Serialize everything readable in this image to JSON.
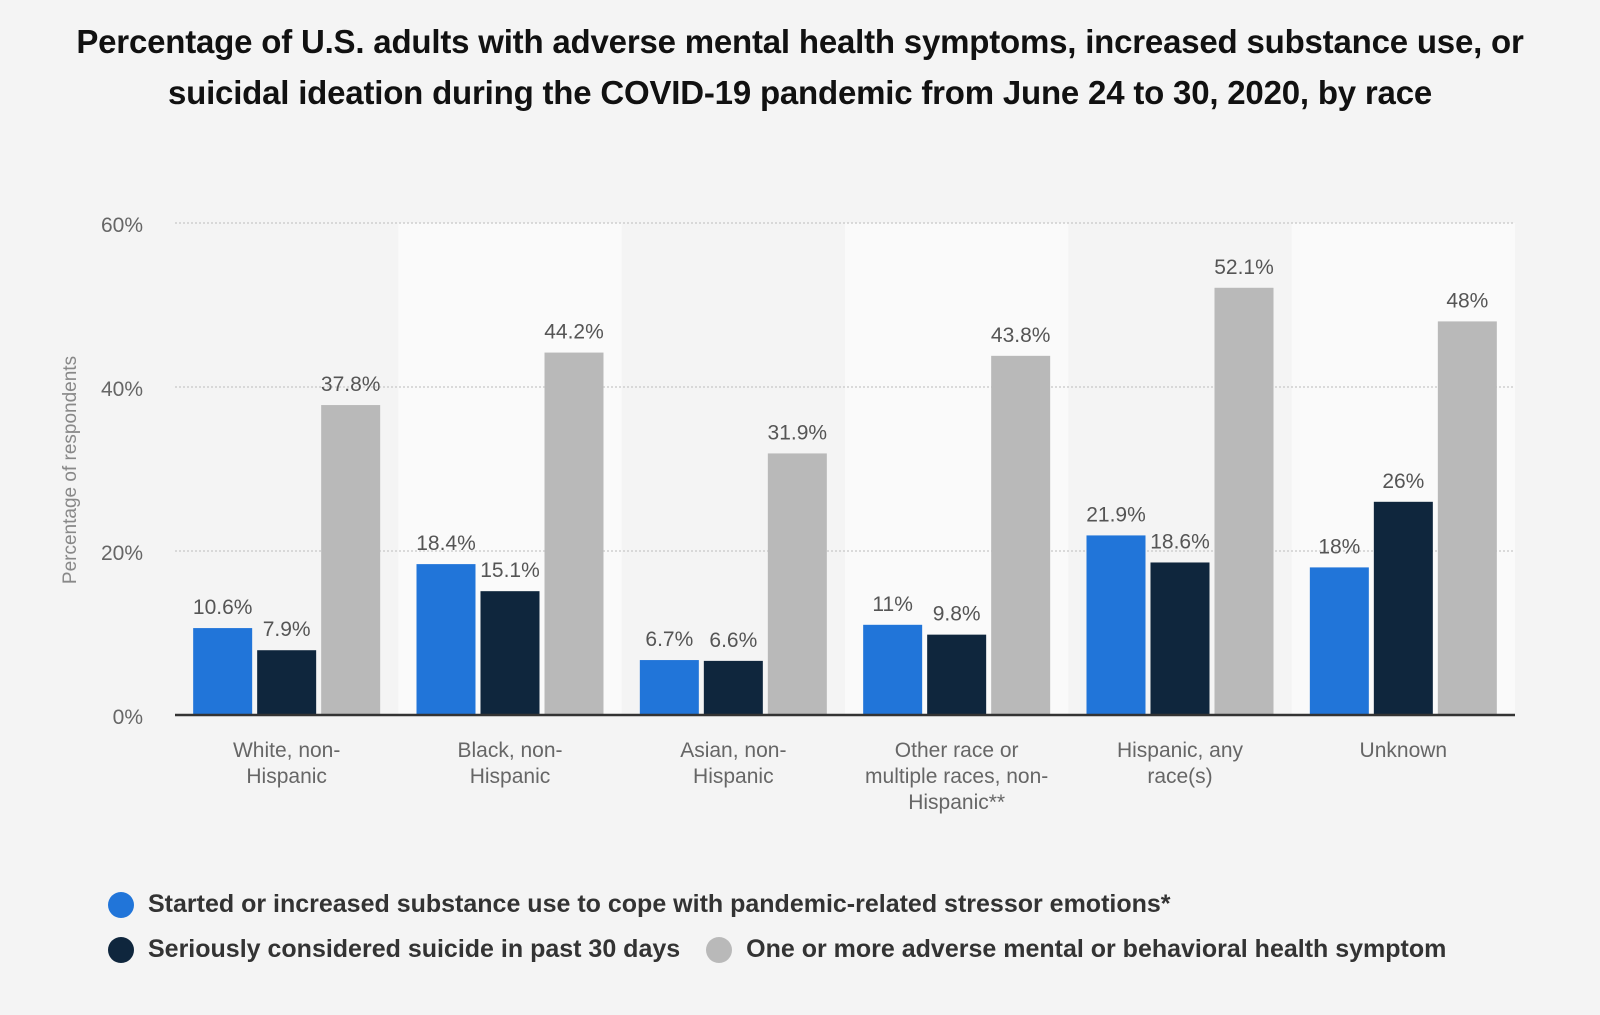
{
  "chart_data": {
    "type": "bar",
    "title": "Percentage of U.S. adults with adverse mental health symptoms, increased substance use, or suicidal ideation during the COVID-19 pandemic from June 24 to 30, 2020, by race",
    "xlabel": "",
    "ylabel": "Percentage of respondents",
    "ylim": [
      0,
      60
    ],
    "yticks": [
      0,
      20,
      40,
      60
    ],
    "ytick_labels": [
      "0%",
      "20%",
      "40%",
      "60%"
    ],
    "grid": true,
    "legend_position": "bottom-left",
    "categories": [
      [
        "White, non-",
        "Hispanic"
      ],
      [
        "Black, non-",
        "Hispanic"
      ],
      [
        "Asian, non-",
        "Hispanic"
      ],
      [
        "Other race or",
        "multiple races, non-",
        "Hispanic**"
      ],
      [
        "Hispanic, any",
        "race(s)"
      ],
      [
        "Unknown"
      ]
    ],
    "series": [
      {
        "name": "Started or increased substance use to cope with pandemic-related stressor emotions*",
        "color": "#2175d9",
        "values": [
          10.6,
          18.4,
          6.7,
          11,
          21.9,
          18
        ],
        "labels": [
          "10.6%",
          "18.4%",
          "6.7%",
          "11%",
          "21.9%",
          "18%"
        ]
      },
      {
        "name": "Seriously considered suicide in past 30 days",
        "color": "#0f263d",
        "values": [
          7.9,
          15.1,
          6.6,
          9.8,
          18.6,
          26
        ],
        "labels": [
          "7.9%",
          "15.1%",
          "6.6%",
          "9.8%",
          "18.6%",
          "26%"
        ]
      },
      {
        "name": "One or more adverse mental or behavioral health symptom",
        "color": "#b9b9b9",
        "values": [
          37.8,
          44.2,
          31.9,
          43.8,
          52.1,
          48
        ],
        "labels": [
          "37.8%",
          "44.2%",
          "31.9%",
          "43.8%",
          "52.1%",
          "48%"
        ]
      }
    ]
  }
}
